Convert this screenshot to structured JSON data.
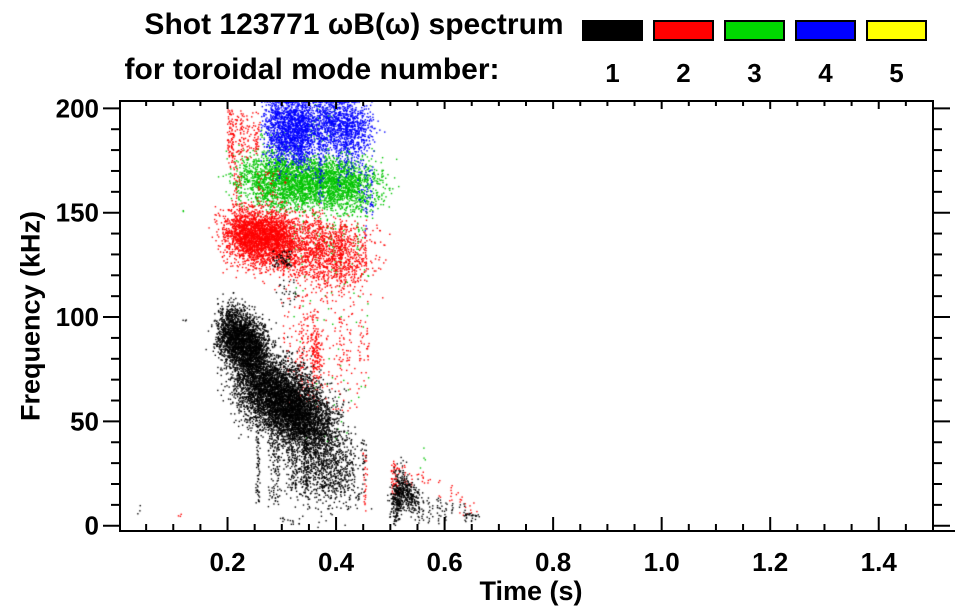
{
  "title": {
    "line1": "Shot 123771 ωB(ω) spectrum",
    "line2": "for toroidal mode number:"
  },
  "legend": {
    "items": [
      {
        "label": "1",
        "color": "#000000"
      },
      {
        "label": "2",
        "color": "#ff0000"
      },
      {
        "label": "3",
        "color": "#00d800"
      },
      {
        "label": "4",
        "color": "#0000ff"
      },
      {
        "label": "5",
        "color": "#ffff00"
      }
    ]
  },
  "chart_data": {
    "type": "scatter",
    "title": "Shot 123771 ωB(ω) spectrum for toroidal mode number: 1 2 3 4 5",
    "xlabel": "Time (s)",
    "ylabel": "Frequency (kHz)",
    "xlim": [
      0,
      1.5
    ],
    "ylim": [
      -3,
      204
    ],
    "grid": false,
    "legend_position": "top-right",
    "x_ticks": {
      "major": [
        0.2,
        0.4,
        0.6,
        0.8,
        1.0,
        1.2,
        1.4
      ],
      "labels": [
        "0.2",
        "0.4",
        "0.6",
        "0.8",
        "1.0",
        "1.2",
        "1.4"
      ],
      "minor_step": 0.05
    },
    "y_ticks": {
      "major": [
        0,
        50,
        100,
        150,
        200
      ],
      "labels": [
        "0",
        "50",
        "100",
        "150",
        "200"
      ],
      "minor_step": 10
    },
    "series": [
      {
        "name": "mode 1",
        "mode": 1,
        "color": "#000000",
        "clusters": [
          {
            "shape": "blob",
            "t": [
              0.195,
              0.26
            ],
            "f": [
              93,
              84
            ],
            "sigma_t": 0.013,
            "sigma_f": 7,
            "n": 2600
          },
          {
            "shape": "blob",
            "t": [
              0.235,
              0.335
            ],
            "f": [
              70,
              57
            ],
            "sigma_t": 0.022,
            "sigma_f": 9,
            "n": 3800
          },
          {
            "shape": "blob",
            "t": [
              0.3,
              0.385
            ],
            "f": [
              55,
              47
            ],
            "sigma_t": 0.018,
            "sigma_f": 8,
            "n": 2000
          },
          {
            "shape": "streaks",
            "t": [
              0.25,
              0.455
            ],
            "f_top": [
              62,
              42
            ],
            "f_bot": [
              10,
              24
            ],
            "count": 34,
            "p": 0.42
          },
          {
            "shape": "blob",
            "t": [
              0.33,
              0.425
            ],
            "f": [
              30,
              24
            ],
            "sigma_t": 0.02,
            "sigma_f": 9,
            "n": 800
          },
          {
            "shape": "dots",
            "t": [
              0.282,
              0.318
            ],
            "f": [
              124,
              132
            ],
            "n": 60
          },
          {
            "shape": "dots",
            "t": [
              0.29,
              0.33
            ],
            "f": [
              103,
              118
            ],
            "n": 25
          },
          {
            "shape": "blob",
            "t": [
              0.505,
              0.522
            ],
            "f": [
              8,
              20
            ],
            "sigma_t": 0.005,
            "sigma_f": 5,
            "n": 300
          },
          {
            "shape": "blob",
            "t": [
              0.52,
              0.548
            ],
            "f": [
              18,
              11
            ],
            "sigma_t": 0.006,
            "sigma_f": 4,
            "n": 250
          },
          {
            "shape": "comb",
            "t": [
              0.553,
              0.638
            ],
            "f_top": [
              15,
              8
            ],
            "f_bot": [
              4,
              5
            ],
            "count": 11,
            "p": 0.8
          },
          {
            "shape": "dots",
            "t": [
              0.635,
              0.665
            ],
            "f": [
              2,
              6
            ],
            "n": 25
          },
          {
            "shape": "dots",
            "t": [
              0.03,
              0.04
            ],
            "f": [
              5,
              10
            ],
            "n": 3
          },
          {
            "shape": "dots",
            "t": [
              0.118,
              0.126
            ],
            "f": [
              96,
              99
            ],
            "n": 3
          },
          {
            "shape": "dots",
            "t": [
              0.295,
              0.335
            ],
            "f": [
              0,
              4
            ],
            "n": 14
          }
        ]
      },
      {
        "name": "mode 2",
        "mode": 2,
        "color": "#ff0000",
        "clusters": [
          {
            "shape": "streaks",
            "t": [
              0.197,
              0.26
            ],
            "f_top": [
              200,
              188
            ],
            "f_bot": [
              172,
              182
            ],
            "count": 12,
            "p": 0.5
          },
          {
            "shape": "dots",
            "t": [
              0.2,
              0.26
            ],
            "f": [
              176,
              200
            ],
            "n": 90
          },
          {
            "shape": "streaks",
            "t": [
              0.213,
              0.228
            ],
            "f_top": [
              176,
              170
            ],
            "f_bot": [
              148,
              155
            ],
            "count": 3,
            "p": 0.5
          },
          {
            "shape": "blob",
            "t": [
              0.215,
              0.305
            ],
            "f": [
              140,
              137
            ],
            "sigma_t": 0.02,
            "sigma_f": 6.5,
            "n": 2800
          },
          {
            "shape": "blob",
            "t": [
              0.305,
              0.435
            ],
            "f": [
              134,
              127
            ],
            "sigma_t": 0.028,
            "sigma_f": 8,
            "n": 1400
          },
          {
            "shape": "streaks",
            "t": [
              0.32,
              0.46
            ],
            "f_top": [
              152,
              140
            ],
            "f_bot": [
              112,
              125
            ],
            "count": 14,
            "p": 0.45
          },
          {
            "shape": "dots",
            "t": [
              0.255,
              0.31
            ],
            "f": [
              152,
              170
            ],
            "n": 40
          },
          {
            "shape": "streaks",
            "t": [
              0.29,
              0.46
            ],
            "f_top": [
              112,
              95
            ],
            "f_bot": [
              50,
              80
            ],
            "count": 13,
            "p": 0.33
          },
          {
            "shape": "dots",
            "t": [
              0.3,
              0.46
            ],
            "f": [
              55,
              112
            ],
            "n": 160
          },
          {
            "shape": "blob",
            "t": [
              0.355,
              0.37
            ],
            "f": [
              85,
              82
            ],
            "sigma_t": 0.004,
            "sigma_f": 8,
            "n": 160
          },
          {
            "shape": "streaks",
            "t": [
              0.448,
              0.458
            ],
            "f_top": [
              38,
              35
            ],
            "f_bot": [
              8,
              12
            ],
            "count": 2,
            "p": 0.5
          },
          {
            "shape": "comb",
            "t": [
              0.508,
              0.632
            ],
            "f_top": [
              30,
              15
            ],
            "f_bot": [
              25,
              12
            ],
            "count": 13,
            "p": 0.75
          },
          {
            "shape": "dots",
            "t": [
              0.502,
              0.518
            ],
            "f": [
              14,
              30
            ],
            "n": 50
          },
          {
            "shape": "dots",
            "t": [
              0.108,
              0.116
            ],
            "f": [
              2,
              6
            ],
            "n": 3
          },
          {
            "shape": "dots",
            "t": [
              0.615,
              0.66
            ],
            "f": [
              5,
              11
            ],
            "n": 10
          }
        ]
      },
      {
        "name": "mode 3",
        "mode": 3,
        "color": "#00c400",
        "clusters": [
          {
            "shape": "blob",
            "t": [
              0.25,
              0.45
            ],
            "f": [
              167,
              163
            ],
            "sigma_t": 0.03,
            "sigma_f": 6,
            "n": 3400
          },
          {
            "shape": "streaks",
            "t": [
              0.26,
              0.45
            ],
            "f_top": [
              182,
              178
            ],
            "f_bot": [
              150,
              158
            ],
            "count": 16,
            "p": 0.3
          },
          {
            "shape": "dots",
            "t": [
              0.26,
              0.31
            ],
            "f": [
              176,
              192
            ],
            "n": 30
          },
          {
            "shape": "dots",
            "t": [
              0.345,
              0.405
            ],
            "f": [
              184,
              202
            ],
            "n": 40
          },
          {
            "shape": "dots",
            "t": [
              0.25,
              0.46
            ],
            "f": [
              148,
              158
            ],
            "n": 120
          },
          {
            "shape": "streaks",
            "t": [
              0.3,
              0.455
            ],
            "f_top": [
              150,
              145
            ],
            "f_bot": [
              118,
              135
            ],
            "count": 10,
            "p": 0.35
          },
          {
            "shape": "dots",
            "t": [
              0.32,
              0.46
            ],
            "f": [
              95,
              145
            ],
            "n": 70
          },
          {
            "shape": "dots",
            "t": [
              0.33,
              0.46
            ],
            "f": [
              40,
              92
            ],
            "n": 28
          },
          {
            "shape": "dots",
            "t": [
              0.118,
              0.125
            ],
            "f": [
              150,
              153
            ],
            "n": 2
          },
          {
            "shape": "dots",
            "t": [
              0.553,
              0.565
            ],
            "f": [
              27,
              38
            ],
            "n": 4
          }
        ]
      },
      {
        "name": "mode 4",
        "mode": 4,
        "color": "#0000ff",
        "clusters": [
          {
            "shape": "blob",
            "t": [
              0.285,
              0.35
            ],
            "f": [
              192,
              187
            ],
            "sigma_t": 0.015,
            "sigma_f": 8,
            "n": 1600
          },
          {
            "shape": "streaks",
            "t": [
              0.295,
              0.36
            ],
            "f_top": [
              202,
              200
            ],
            "f_bot": [
              168,
              180
            ],
            "count": 9,
            "p": 0.4
          },
          {
            "shape": "dots",
            "t": [
              0.275,
              0.295
            ],
            "f": [
              175,
              200
            ],
            "n": 50
          },
          {
            "shape": "blob",
            "t": [
              0.365,
              0.445
            ],
            "f": [
              194,
              189
            ],
            "sigma_t": 0.018,
            "sigma_f": 7,
            "n": 1100
          },
          {
            "shape": "streaks",
            "t": [
              0.37,
              0.46
            ],
            "f_top": [
              202,
              198
            ],
            "f_bot": [
              152,
              175
            ],
            "count": 11,
            "p": 0.45
          },
          {
            "shape": "dots",
            "t": [
              0.44,
              0.468
            ],
            "f": [
              150,
              202
            ],
            "n": 70
          },
          {
            "shape": "streaks",
            "t": [
              0.455,
              0.467
            ],
            "f_top": [
              180,
              175
            ],
            "f_bot": [
              140,
              150
            ],
            "count": 2,
            "p": 0.4
          }
        ]
      },
      {
        "name": "mode 5",
        "mode": 5,
        "color": "#ffff00",
        "clusters": []
      }
    ]
  }
}
